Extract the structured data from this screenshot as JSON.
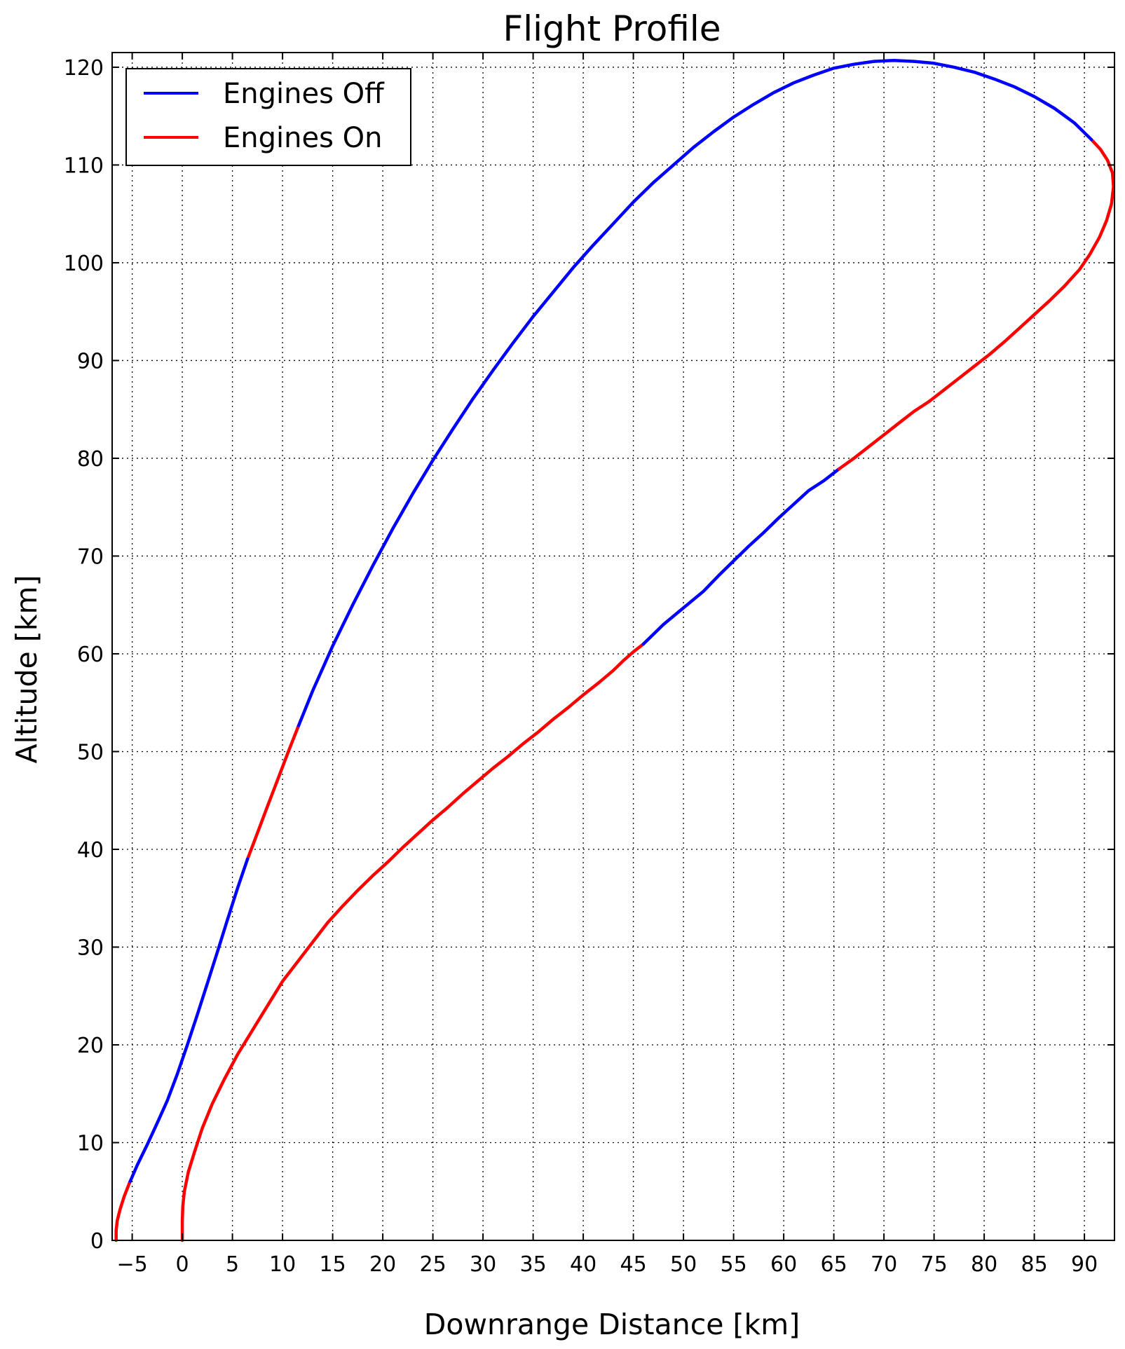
{
  "chart_data": {
    "type": "line",
    "title": "Flight Profile",
    "xlabel": "Downrange Distance [km]",
    "ylabel": "Altitude [km]",
    "xlim": [
      -7,
      93
    ],
    "ylim": [
      0,
      121.5
    ],
    "xticks": [
      -5,
      0,
      5,
      10,
      15,
      20,
      25,
      30,
      35,
      40,
      45,
      50,
      55,
      60,
      65,
      70,
      75,
      80,
      85,
      90
    ],
    "xtick_labels": [
      "−5",
      "0",
      "5",
      "10",
      "15",
      "20",
      "25",
      "30",
      "35",
      "40",
      "45",
      "50",
      "55",
      "60",
      "65",
      "70",
      "75",
      "80",
      "85",
      "90"
    ],
    "yticks": [
      0,
      10,
      20,
      30,
      40,
      50,
      60,
      70,
      80,
      90,
      100,
      110,
      120
    ],
    "ytick_labels": [
      "0",
      "10",
      "20",
      "30",
      "40",
      "50",
      "60",
      "70",
      "80",
      "90",
      "100",
      "110",
      "120"
    ],
    "grid": true,
    "grid_style": "dotted",
    "legend_position": "top-left",
    "legend": [
      {
        "label": "Engines Off",
        "color": "#0000ff"
      },
      {
        "label": "Engines On",
        "color": "#ff0000"
      }
    ],
    "segments": [
      {
        "state": "on",
        "color": "#ff0000",
        "points": [
          [
            0,
            0
          ],
          [
            0,
            1
          ],
          [
            0,
            2
          ],
          [
            0.05,
            3.5
          ],
          [
            0.2,
            5
          ],
          [
            0.6,
            7
          ],
          [
            1.2,
            9
          ],
          [
            2,
            11.5
          ],
          [
            3,
            14
          ],
          [
            4.2,
            16.5
          ],
          [
            5.5,
            19
          ],
          [
            7,
            21.5
          ],
          [
            8.5,
            24
          ],
          [
            10,
            26.5
          ],
          [
            11.5,
            28.5
          ],
          [
            13,
            30.5
          ],
          [
            14.5,
            32.5
          ],
          [
            16,
            34.2
          ],
          [
            17.5,
            35.8
          ],
          [
            19,
            37.3
          ],
          [
            20.5,
            38.7
          ],
          [
            22,
            40.2
          ],
          [
            23.5,
            41.6
          ],
          [
            25,
            43
          ],
          [
            26.5,
            44.3
          ],
          [
            28,
            45.7
          ],
          [
            29.5,
            47
          ],
          [
            31,
            48.3
          ],
          [
            32.5,
            49.5
          ],
          [
            34,
            50.8
          ],
          [
            35.5,
            52
          ],
          [
            37,
            53.3
          ],
          [
            38.5,
            54.5
          ],
          [
            40,
            55.8
          ],
          [
            41.5,
            57
          ],
          [
            43,
            58.3
          ],
          [
            44,
            59.3
          ],
          [
            45,
            60.2
          ],
          [
            46,
            61
          ]
        ]
      },
      {
        "state": "off",
        "color": "#0000ff",
        "points": [
          [
            46,
            61
          ],
          [
            48,
            63
          ],
          [
            50,
            64.7
          ],
          [
            52,
            66.4
          ],
          [
            53.5,
            68
          ],
          [
            55,
            69.5
          ],
          [
            56.5,
            71
          ],
          [
            58,
            72.4
          ],
          [
            59.5,
            73.9
          ],
          [
            61,
            75.3
          ],
          [
            62.5,
            76.7
          ],
          [
            64,
            77.7
          ],
          [
            65.5,
            78.9
          ]
        ]
      },
      {
        "state": "on",
        "color": "#ff0000",
        "points": [
          [
            65.5,
            78.9
          ],
          [
            67,
            80
          ],
          [
            68.5,
            81.2
          ],
          [
            70,
            82.4
          ],
          [
            71.5,
            83.6
          ],
          [
            73,
            84.8
          ],
          [
            74.5,
            85.8
          ],
          [
            76,
            87
          ],
          [
            77.5,
            88.2
          ],
          [
            79,
            89.4
          ],
          [
            80.5,
            90.6
          ],
          [
            82,
            91.9
          ],
          [
            83.5,
            93.3
          ],
          [
            85,
            94.7
          ],
          [
            86.5,
            96.1
          ],
          [
            88,
            97.6
          ],
          [
            89.5,
            99.3
          ],
          [
            90.5,
            100.8
          ],
          [
            91.5,
            102.6
          ],
          [
            92.2,
            104.3
          ],
          [
            92.7,
            106
          ],
          [
            92.9,
            107.8
          ],
          [
            92.8,
            109.2
          ],
          [
            92.3,
            110.5
          ],
          [
            91.6,
            111.6
          ],
          [
            90.7,
            112.6
          ]
        ]
      },
      {
        "state": "off",
        "color": "#0000ff",
        "points": [
          [
            90.7,
            112.6
          ],
          [
            89,
            114.3
          ],
          [
            87,
            115.8
          ],
          [
            85,
            117
          ],
          [
            83,
            118
          ],
          [
            81,
            118.8
          ],
          [
            79,
            119.5
          ],
          [
            77,
            120
          ],
          [
            75,
            120.4
          ],
          [
            73,
            120.6
          ],
          [
            71,
            120.7
          ],
          [
            69,
            120.6
          ],
          [
            67,
            120.3
          ],
          [
            65,
            119.9
          ],
          [
            63,
            119.2
          ],
          [
            61,
            118.4
          ],
          [
            59,
            117.4
          ],
          [
            57,
            116.2
          ],
          [
            55,
            114.9
          ],
          [
            53,
            113.4
          ],
          [
            51,
            111.8
          ],
          [
            49,
            110
          ],
          [
            47,
            108.2
          ],
          [
            45,
            106.2
          ],
          [
            43,
            104
          ],
          [
            41,
            101.8
          ],
          [
            39,
            99.5
          ],
          [
            37,
            97
          ],
          [
            35,
            94.5
          ],
          [
            33,
            91.8
          ],
          [
            31,
            89
          ],
          [
            29,
            86.1
          ],
          [
            27,
            83
          ],
          [
            25,
            79.8
          ],
          [
            23,
            76.4
          ],
          [
            21,
            72.8
          ],
          [
            19,
            69
          ],
          [
            17,
            65
          ],
          [
            15,
            60.8
          ],
          [
            13,
            56.2
          ],
          [
            11.5,
            52.4
          ]
        ]
      },
      {
        "state": "on",
        "color": "#ff0000",
        "points": [
          [
            11.5,
            52.4
          ],
          [
            10.5,
            49.8
          ],
          [
            9.5,
            47.1
          ],
          [
            8.5,
            44.4
          ],
          [
            7.5,
            41.7
          ],
          [
            6.5,
            39
          ]
        ]
      },
      {
        "state": "off",
        "color": "#0000ff",
        "points": [
          [
            6.5,
            39
          ],
          [
            5.5,
            36
          ],
          [
            4.5,
            32.8
          ],
          [
            3.5,
            29.5
          ],
          [
            2.5,
            26.3
          ],
          [
            1.5,
            23.1
          ],
          [
            0.5,
            20
          ],
          [
            -0.5,
            17
          ],
          [
            -1.5,
            14.3
          ],
          [
            -2.5,
            12
          ],
          [
            -3.5,
            9.8
          ],
          [
            -4.5,
            7.7
          ],
          [
            -5.3,
            5.8
          ]
        ]
      },
      {
        "state": "on",
        "color": "#ff0000",
        "points": [
          [
            -5.3,
            5.8
          ],
          [
            -5.8,
            4.5
          ],
          [
            -6.2,
            3.2
          ],
          [
            -6.5,
            2
          ],
          [
            -6.6,
            1
          ],
          [
            -6.6,
            0
          ]
        ]
      }
    ]
  }
}
